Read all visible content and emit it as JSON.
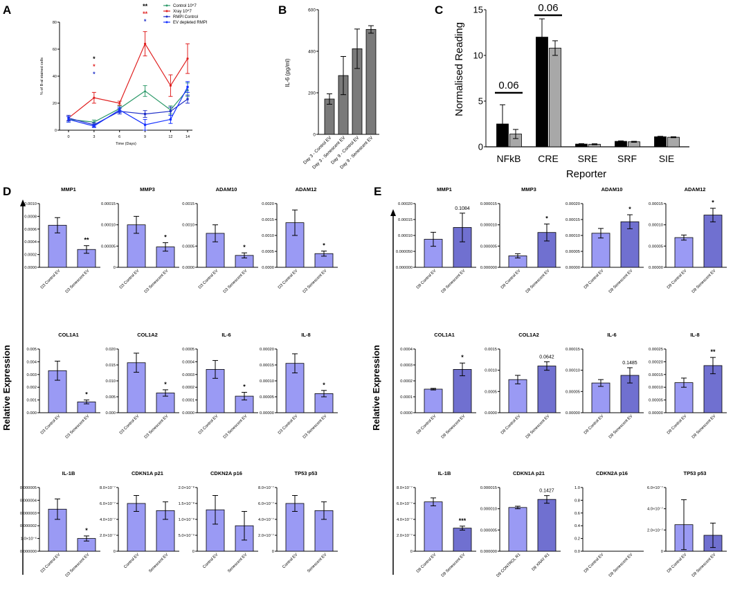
{
  "figure": {
    "panel_letters": [
      "A",
      "B",
      "C",
      "D",
      "E"
    ],
    "relative_expression_label": "Relative Expression"
  },
  "colors": {
    "control_green": "#2e9a6a",
    "xray_red": "#e02020",
    "rmpi_blue": "#2030c8",
    "ev_blue": "#1430ff",
    "gray_bar": "#7a7a7a",
    "light_gray_bar": "#a8a8a8",
    "black_bar": "#000000",
    "panel_bar_fill": "#9a9af4",
    "panel_bar_dark": "#7070d0",
    "sig_black": "#000000",
    "sig_red": "#e02020",
    "sig_blue": "#2030c8"
  },
  "chart_data": [
    {
      "id": "A",
      "type": "line",
      "ylabel": "% of B-al stained cells",
      "xlabel": "Time (Days)",
      "x": [
        0,
        3,
        6,
        9,
        12,
        14
      ],
      "xticks": [
        "0",
        "3",
        "6",
        "9",
        "12",
        "14"
      ],
      "ylim": [
        0,
        80
      ],
      "yticks": [
        "0",
        "20",
        "40",
        "60",
        "80"
      ],
      "series": [
        {
          "name": "Control 10^7",
          "color": "control_green",
          "values": [
            8,
            6,
            16,
            29,
            15,
            30
          ],
          "errors": [
            2,
            1.5,
            2,
            4,
            3,
            5
          ]
        },
        {
          "name": "Xray 10^7",
          "color": "xray_red",
          "values": [
            9,
            24,
            20,
            64,
            33,
            53
          ],
          "errors": [
            2,
            4,
            1.5,
            9,
            8,
            11
          ]
        },
        {
          "name": "RMPI Control",
          "color": "rmpi_blue",
          "values": [
            9,
            4,
            14,
            12,
            14,
            23
          ],
          "errors": [
            2,
            1.5,
            2,
            2.5,
            3,
            3
          ]
        },
        {
          "name": "EV depleted RMPI",
          "color": "ev_blue",
          "values": [
            8,
            3,
            15,
            4,
            8,
            32
          ],
          "errors": [
            2,
            1,
            2,
            4,
            3,
            4
          ]
        }
      ],
      "annotations": [
        {
          "x": 3,
          "stars": [
            "*",
            "*",
            "*"
          ],
          "colors": [
            "sig_black",
            "sig_red",
            "sig_blue"
          ]
        },
        {
          "x": 9,
          "stars": [
            "**",
            "**",
            "*"
          ],
          "colors": [
            "sig_black",
            "sig_red",
            "sig_blue"
          ]
        }
      ]
    },
    {
      "id": "B",
      "type": "bar",
      "ylabel": "IL-6 (pg/ml)",
      "categories": [
        "Day 3 - Control EV",
        "Day 3 - Senescent EV",
        "Day 9 - Control EV",
        "Day 9 - Senescent EV"
      ],
      "values": [
        170,
        283,
        412,
        505
      ],
      "errors": [
        25,
        92,
        95,
        18
      ],
      "ylim": [
        0,
        600
      ],
      "yticks": [
        "0",
        "200",
        "400",
        "600"
      ]
    },
    {
      "id": "E",
      "type": "bar",
      "ylabel": "Normalised Reading",
      "xlabel": "Reporter",
      "categories": [
        "NFkB",
        "CRE",
        "SRE",
        "SRF",
        "SIE"
      ],
      "series": [
        {
          "name": "black",
          "values": [
            2.5,
            12.0,
            0.3,
            0.6,
            1.1
          ],
          "errors": [
            2.1,
            2.0,
            0.05,
            0.05,
            0.05
          ]
        },
        {
          "name": "gray",
          "values": [
            1.4,
            10.8,
            0.28,
            0.55,
            1.05
          ],
          "errors": [
            0.5,
            0.8,
            0.05,
            0.05,
            0.05
          ]
        }
      ],
      "ylim": [
        0,
        15
      ],
      "yticks": [
        "0",
        "5",
        "10",
        "15"
      ],
      "annotations": [
        {
          "category": "NFkB",
          "text": "0.06"
        },
        {
          "category": "CRE",
          "text": "0.06"
        }
      ]
    },
    {
      "id": "C",
      "type": "bar",
      "panels": [
        {
          "title": "MMP1",
          "categories": [
            "D3 Control EV",
            "D3 Senescent EV"
          ],
          "values": [
            0.00066,
            0.00028
          ],
          "errors": [
            0.00012,
            6e-05
          ],
          "ylim": [
            0,
            0.001
          ],
          "yticks": [
            "0.0000",
            "0.0002",
            "0.0004",
            "0.0006",
            "0.0008",
            "0.0010"
          ],
          "sig": "**"
        },
        {
          "title": "MMP3",
          "categories": [
            "D3 Control EV",
            "D3 Senescent EV"
          ],
          "values": [
            0.0001,
            4.8e-05
          ],
          "errors": [
            2e-05,
            1e-05
          ],
          "ylim": [
            0,
            0.00015
          ],
          "yticks": [
            "0",
            "0.00005",
            "0.00010",
            "0.00015"
          ],
          "sig": "*"
        },
        {
          "title": "ADAM10",
          "categories": [
            "D3 Control EV",
            "D3 Senescent EV"
          ],
          "values": [
            0.0008,
            0.00028
          ],
          "errors": [
            0.0002,
            6e-05
          ],
          "ylim": [
            0,
            0.0015
          ],
          "yticks": [
            "0.0000",
            "0.0005",
            "0.0010",
            "0.0015"
          ],
          "sig": "*"
        },
        {
          "title": "ADAM12",
          "categories": [
            "D3 Control EV",
            "D3 Senescent EV"
          ],
          "values": [
            0.0014,
            0.00043
          ],
          "errors": [
            0.0004,
            8e-05
          ],
          "ylim": [
            0,
            0.002
          ],
          "yticks": [
            "0.0000",
            "0.0005",
            "0.0010",
            "0.0015",
            "0.0020"
          ],
          "sig": "*"
        },
        {
          "title": "COL1A1",
          "categories": [
            "D3 Control EV",
            "D3 Senescent EV"
          ],
          "values": [
            0.0033,
            0.00085
          ],
          "errors": [
            0.00075,
            0.00015
          ],
          "ylim": [
            0,
            0.005
          ],
          "yticks": [
            "0.000",
            "0.001",
            "0.002",
            "0.003",
            "0.004",
            "0.005"
          ],
          "sig": "*"
        },
        {
          "title": "COL1A2",
          "categories": [
            "D3 Control EV",
            "D3 Senescent EV"
          ],
          "values": [
            0.0157,
            0.0062
          ],
          "errors": [
            0.003,
            0.001
          ],
          "ylim": [
            0,
            0.02
          ],
          "yticks": [
            "0.000",
            "0.005",
            "0.010",
            "0.015",
            "0.020"
          ],
          "sig": "*"
        },
        {
          "title": "IL-6",
          "categories": [
            "D3 Control EV",
            "D3 Senescent EV"
          ],
          "values": [
            0.00034,
            0.00013
          ],
          "errors": [
            7e-05,
            3e-05
          ],
          "ylim": [
            0,
            0.0005
          ],
          "yticks": [
            "0.0000",
            "0.0001",
            "0.0002",
            "0.0003",
            "0.0004",
            "0.0005"
          ],
          "sig": "*"
        },
        {
          "title": "IL-8",
          "categories": [
            "D3 Control EV",
            "D3 Senescent EV"
          ],
          "values": [
            0.000155,
            6e-05
          ],
          "errors": [
            3e-05,
            1e-05
          ],
          "ylim": [
            0,
            0.0002
          ],
          "yticks": [
            "0.00000",
            "0.00005",
            "0.00010",
            "0.00015",
            "0.00020"
          ],
          "sig": "*"
        },
        {
          "title": "IL-1B",
          "categories": [
            "D3 Control EV",
            "D3 Senescent EV"
          ],
          "values": [
            3.3e-06,
            1e-06
          ],
          "errors": [
            8e-07,
            2e-07
          ],
          "ylim": [
            0,
            5e-06
          ],
          "yticks": [
            "0.000000",
            "1.0×10⁻⁶",
            "0.000002",
            "0.000003",
            "0.000004",
            "0.000005"
          ],
          "sig": "*"
        },
        {
          "title": "CDKN1A p21",
          "categories": [
            "Control EV",
            "Senescent EV"
          ],
          "values": [
            6e-07,
            5.1e-07
          ],
          "errors": [
            1e-07,
            1.1e-07
          ],
          "ylim": [
            0,
            8e-07
          ],
          "yticks": [
            "0",
            "2.0×10⁻⁷",
            "4.0×10⁻⁷",
            "6.0×10⁻⁷",
            "8.0×10⁻⁷"
          ],
          "sig": ""
        },
        {
          "title": "CDKN2A p16",
          "categories": [
            "Control EV",
            "Senescent EV"
          ],
          "values": [
            1.3e-08,
            8e-09
          ],
          "errors": [
            4.5e-09,
            4.5e-09
          ],
          "ylim": [
            0,
            2e-08
          ],
          "yticks": [
            "0",
            "5.0×10⁻⁹",
            "1.0×10⁻⁸",
            "1.5×10⁻⁸",
            "2.0×10⁻⁸"
          ],
          "sig": ""
        },
        {
          "title": "TP53 p53",
          "categories": [
            "Control EV",
            "Senescent EV"
          ],
          "values": [
            6e-07,
            5.1e-07
          ],
          "errors": [
            1e-07,
            1.1e-07
          ],
          "ylim": [
            0,
            8e-07
          ],
          "yticks": [
            "0",
            "2.0×10⁻⁷",
            "4.0×10⁻⁷",
            "6.0×10⁻⁷",
            "8.0×10⁻⁷"
          ],
          "sig": ""
        }
      ]
    },
    {
      "id": "D",
      "type": "bar",
      "panels": [
        {
          "title": "MMP1",
          "categories": [
            "D9 Control EV",
            "D9 Senescent EV"
          ],
          "values": [
            8.8e-05,
            0.000125
          ],
          "errors": [
            2.2e-05,
            4.5e-05
          ],
          "ylim": [
            0,
            0.0002
          ],
          "yticks": [
            "0.000000",
            "0.000050",
            "0.00010",
            "0.00015",
            "0.00020"
          ],
          "sig": "0.1084"
        },
        {
          "title": "MMP3",
          "categories": [
            "D9 Control EV",
            "D9 Senescent EV"
          ],
          "values": [
            2.7e-06,
            8.2e-06
          ],
          "errors": [
            5e-07,
            2e-06
          ],
          "ylim": [
            0,
            1.5e-05
          ],
          "yticks": [
            "0.000000",
            "0.000005",
            "0.000010",
            "0.000015"
          ],
          "sig": "*"
        },
        {
          "title": "ADAM10",
          "categories": [
            "D9 Control EV",
            "D9 Senescent EV"
          ],
          "values": [
            0.000107,
            0.000143
          ],
          "errors": [
            1.5e-05,
            2.2e-05
          ],
          "ylim": [
            0,
            0.0002
          ],
          "yticks": [
            "0.00000",
            "0.00005",
            "0.00010",
            "0.00015",
            "0.00020"
          ],
          "sig": "*"
        },
        {
          "title": "ADAM12",
          "categories": [
            "D9 Control EV",
            "D9 Senescent EV"
          ],
          "values": [
            7e-05,
            0.000123
          ],
          "errors": [
            6e-06,
            1.6e-05
          ],
          "ylim": [
            0,
            0.00015
          ],
          "yticks": [
            "0.00000",
            "0.00005",
            "0.00010",
            "0.00015"
          ],
          "sig": "*"
        },
        {
          "title": "COL1A1",
          "categories": [
            "D9 Control EV",
            "D9 Senescent EV"
          ],
          "values": [
            0.000148,
            0.000272
          ],
          "errors": [
            5e-06,
            4e-05
          ],
          "ylim": [
            0,
            0.0004
          ],
          "yticks": [
            "0.0000",
            "0.0001",
            "0.0002",
            "0.0003",
            "0.0004"
          ],
          "sig": "*"
        },
        {
          "title": "COL1A2",
          "categories": [
            "D9 Control EV",
            "D9 Senescent EV"
          ],
          "values": [
            0.00078,
            0.0011
          ],
          "errors": [
            0.0001,
            0.0001
          ],
          "ylim": [
            0,
            0.0015
          ],
          "yticks": [
            "0.0000",
            "0.0005",
            "0.0010",
            "0.0015"
          ],
          "sig": "0.0642"
        },
        {
          "title": "IL-6",
          "categories": [
            "D9 Control EV",
            "D9 Senescent EV"
          ],
          "values": [
            7e-05,
            8.8e-05
          ],
          "errors": [
            8e-06,
            1.8e-05
          ],
          "ylim": [
            0,
            0.00015
          ],
          "yticks": [
            "0.00000",
            "0.00005",
            "0.00010",
            "0.00015"
          ],
          "sig": "0.1485"
        },
        {
          "title": "IL-8",
          "categories": [
            "D9 Control EV",
            "D9 Senescent EV"
          ],
          "values": [
            0.000118,
            0.000185
          ],
          "errors": [
            1.8e-05,
            3.2e-05
          ],
          "ylim": [
            0,
            0.00025
          ],
          "yticks": [
            "0.00000",
            "0.00005",
            "0.00010",
            "0.00015",
            "0.00020",
            "0.00025"
          ],
          "sig": "**"
        },
        {
          "title": "IL-1B",
          "categories": [
            "D9 Control EV",
            "D9 Senescent EV"
          ],
          "values": [
            6.2e-07,
            2.9e-07
          ],
          "errors": [
            5e-08,
            2.5e-08
          ],
          "ylim": [
            0,
            8e-07
          ],
          "yticks": [
            "0",
            "2.0×10⁻⁷",
            "4.0×10⁻⁷",
            "6.0×10⁻⁷",
            "8.0×10⁻⁷"
          ],
          "sig": "***"
        },
        {
          "title": "CDKN1A p21",
          "categories": [
            "D9 CONTROL R1",
            "D9 XRAY R1"
          ],
          "values": [
            1.03e-05,
            1.22e-05
          ],
          "errors": [
            3e-07,
            9e-07
          ],
          "ylim": [
            0,
            1.5e-05
          ],
          "yticks": [
            "0.000000",
            "0.000005",
            "0.000010",
            "0.000015"
          ],
          "sig": "0.1427"
        },
        {
          "title": "CDKN2A p16",
          "categories": [
            "D9 Control EV",
            "D9 Senescent EV"
          ],
          "values": [
            0,
            0
          ],
          "errors": [
            0,
            0
          ],
          "ylim": [
            0,
            1.0
          ],
          "yticks": [
            "0.0",
            "0.2",
            "0.4",
            "0.6",
            "0.8",
            "1.0"
          ],
          "sig": ""
        },
        {
          "title": "TP53 p53",
          "categories": [
            "D9 Control EV",
            "D9 Senescent EV"
          ],
          "values": [
            2.5e-07,
            1.5e-07
          ],
          "errors": [
            2.35e-07,
            1.15e-07
          ],
          "ylim": [
            0,
            6e-07
          ],
          "yticks": [
            "0",
            "2.0×10⁻⁷",
            "4.0×10⁻⁷",
            "6.0×10⁻⁷"
          ],
          "sig": ""
        }
      ]
    }
  ]
}
